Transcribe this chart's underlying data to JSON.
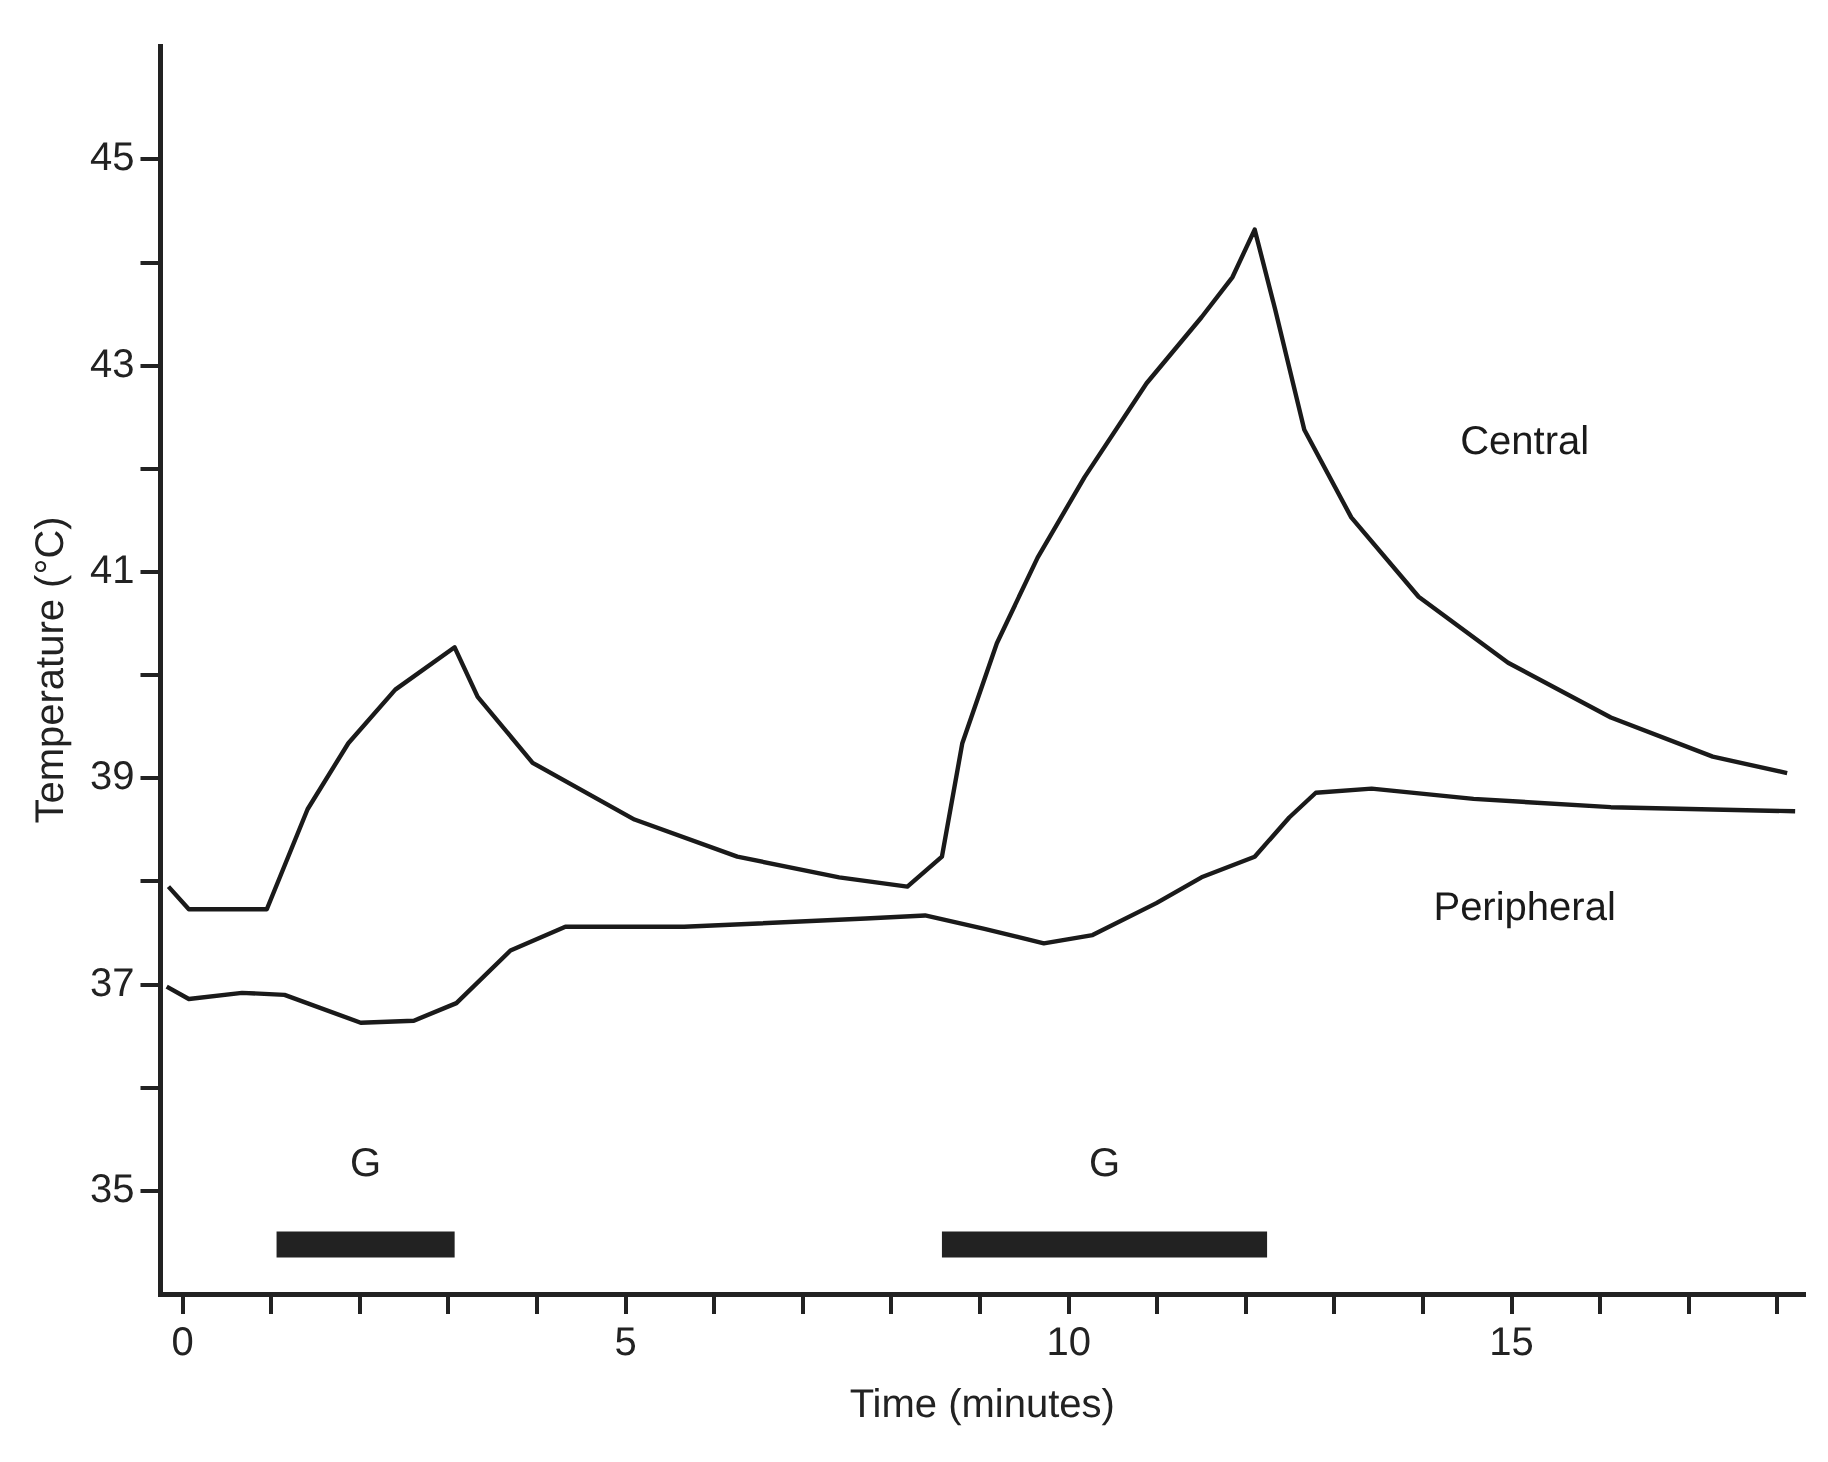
{
  "chart_data": {
    "type": "line",
    "xlabel": "Time (minutes)",
    "ylabel": "Temperature (°C)",
    "xlim": [
      -0.25,
      18.3
    ],
    "ylim": [
      34,
      46.1
    ],
    "xticks": [
      0,
      {
        "value": 1,
        "label": null
      },
      {
        "value": 2,
        "label": null
      },
      {
        "value": 3,
        "label": null
      },
      {
        "value": 4,
        "label": null
      },
      5,
      {
        "value": 6,
        "label": null
      },
      {
        "value": 7,
        "label": null
      },
      {
        "value": 8,
        "label": null
      },
      {
        "value": 9,
        "label": null
      },
      10,
      {
        "value": 11,
        "label": null
      },
      {
        "value": 12,
        "label": null
      },
      {
        "value": 13,
        "label": null
      },
      {
        "value": 14,
        "label": null
      },
      15,
      {
        "value": 16,
        "label": null
      },
      {
        "value": 17,
        "label": null
      },
      {
        "value": 18,
        "label": null
      }
    ],
    "yticks": [
      35,
      {
        "value": 36,
        "label": null
      },
      37,
      {
        "value": 38,
        "label": null
      },
      39,
      {
        "value": 40,
        "label": null
      },
      41,
      {
        "value": 42,
        "label": null
      },
      43,
      {
        "value": 44,
        "label": null
      },
      45
    ],
    "grid": false,
    "legend": false,
    "marker": "none",
    "line_style": "solid",
    "series": [
      {
        "name": "Central",
        "color": "#1a1a1a",
        "x": [
          -0.16,
          0.07,
          0.95,
          1.41,
          1.87,
          2.4,
          3.07,
          3.33,
          3.95,
          5.1,
          6.26,
          7.41,
          8.18,
          8.57,
          8.8,
          9.19,
          9.65,
          10.18,
          10.88,
          11.5,
          11.85,
          12.1,
          12.33,
          12.66,
          13.19,
          13.95,
          14.96,
          16.12,
          17.27,
          18.11
        ],
        "values": [
          37.95,
          37.73,
          37.73,
          38.7,
          39.34,
          39.86,
          40.27,
          39.79,
          39.15,
          38.6,
          38.24,
          38.04,
          37.95,
          38.24,
          39.34,
          40.31,
          41.14,
          41.92,
          42.83,
          43.47,
          43.86,
          44.32,
          43.55,
          42.38,
          41.53,
          40.76,
          40.12,
          39.59,
          39.21,
          39.05
        ]
      },
      {
        "name": "Peripheral",
        "color": "#1a1a1a",
        "x": [
          -0.18,
          0.07,
          0.67,
          1.15,
          2.01,
          2.61,
          3.09,
          3.7,
          4.32,
          5.66,
          7.71,
          8.38,
          9.05,
          9.72,
          10.27,
          10.99,
          11.5,
          12.1,
          12.49,
          12.79,
          13.42,
          14.57,
          16.12,
          18.2
        ],
        "values": [
          36.98,
          36.86,
          36.92,
          36.9,
          36.63,
          36.65,
          36.82,
          37.33,
          37.56,
          37.56,
          37.64,
          37.67,
          37.54,
          37.4,
          37.48,
          37.79,
          38.04,
          38.24,
          38.62,
          38.86,
          38.9,
          38.8,
          38.72,
          38.68
        ]
      },
      {
        "color": "#222222",
        "x": [
          1.06,
          3.07,
          5,
          8.57,
          12.24
        ],
        "values": [
          34.48,
          34.48,
          null,
          34.48,
          34.48
        ]
      }
    ],
    "annotations": [
      "G",
      "G"
    ]
  }
}
